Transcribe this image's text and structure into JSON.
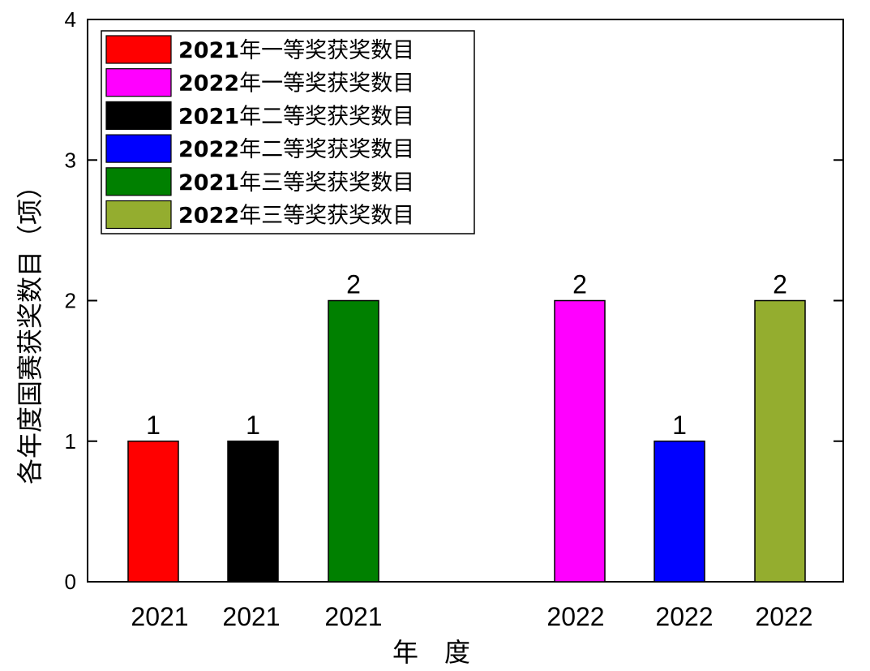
{
  "chart_data": {
    "type": "bar",
    "xlabel": "年　度",
    "ylabel": "各年度国赛获奖数目（项）",
    "ylim": [
      0,
      4
    ],
    "y_ticks": [
      "0",
      "1",
      "2",
      "3",
      "4"
    ],
    "grid": false,
    "legend_position": "top-left",
    "categories": [
      "2021",
      "2021",
      "2021",
      "2022",
      "2022",
      "2022"
    ],
    "bars": [
      {
        "category": "2021",
        "value": 1,
        "label": "1",
        "color": "#ff0000"
      },
      {
        "category": "2021",
        "value": 1,
        "label": "1",
        "color": "#000000"
      },
      {
        "category": "2021",
        "value": 2,
        "label": "2",
        "color": "#008000"
      },
      {
        "category": "2022",
        "value": 2,
        "label": "2",
        "color": "#ff00ff"
      },
      {
        "category": "2022",
        "value": 1,
        "label": "1",
        "color": "#0000ff"
      },
      {
        "category": "2022",
        "value": 2,
        "label": "2",
        "color": "#94ad2f"
      }
    ],
    "legend": [
      {
        "year": "2021",
        "text": "年一等奖获奖数目",
        "color": "#ff0000"
      },
      {
        "year": "2022",
        "text": "年一等奖获奖数目",
        "color": "#ff00ff"
      },
      {
        "year": "2021",
        "text": "年二等奖获奖数目",
        "color": "#000000"
      },
      {
        "year": "2022",
        "text": "年二等奖获奖数目",
        "color": "#0000ff"
      },
      {
        "year": "2021",
        "text": "年三等奖获奖数目",
        "color": "#008000"
      },
      {
        "year": "2022",
        "text": "年三等奖获奖数目",
        "color": "#94ad2f"
      }
    ]
  }
}
